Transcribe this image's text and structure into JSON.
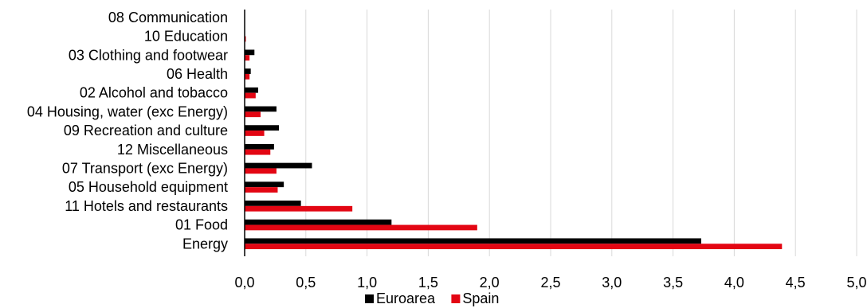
{
  "chart_data": {
    "type": "bar",
    "orientation": "horizontal",
    "categories": [
      "08 Communication",
      "10 Education",
      "03 Clothing and footwear",
      "06 Health",
      "02 Alcohol and tobacco",
      "04 Housing, water (exc Energy)",
      "09 Recreation and culture",
      "12 Miscellaneous",
      "07 Transport (exc Energy)",
      "05 Household equipment",
      "11 Hotels and restaurants",
      "01 Food",
      "Energy"
    ],
    "series": [
      {
        "name": "Euroarea",
        "color": "#000000",
        "values": [
          0.0,
          0.0,
          0.08,
          0.05,
          0.11,
          0.26,
          0.28,
          0.24,
          0.55,
          0.32,
          0.46,
          1.2,
          3.73
        ]
      },
      {
        "name": "Spain",
        "color": "#e30613",
        "values": [
          0.0,
          0.01,
          0.04,
          0.04,
          0.09,
          0.13,
          0.16,
          0.21,
          0.26,
          0.27,
          0.88,
          1.9,
          4.39
        ]
      }
    ],
    "xlim": [
      0,
      5
    ],
    "xticks": [
      "0,0",
      "0,5",
      "1,0",
      "1,5",
      "2,0",
      "2,5",
      "3,0",
      "3,5",
      "4,0",
      "4,5",
      "5,0"
    ],
    "grid": "vertical",
    "legend": "bottom-center",
    "title": "",
    "xlabel": "",
    "ylabel": ""
  }
}
